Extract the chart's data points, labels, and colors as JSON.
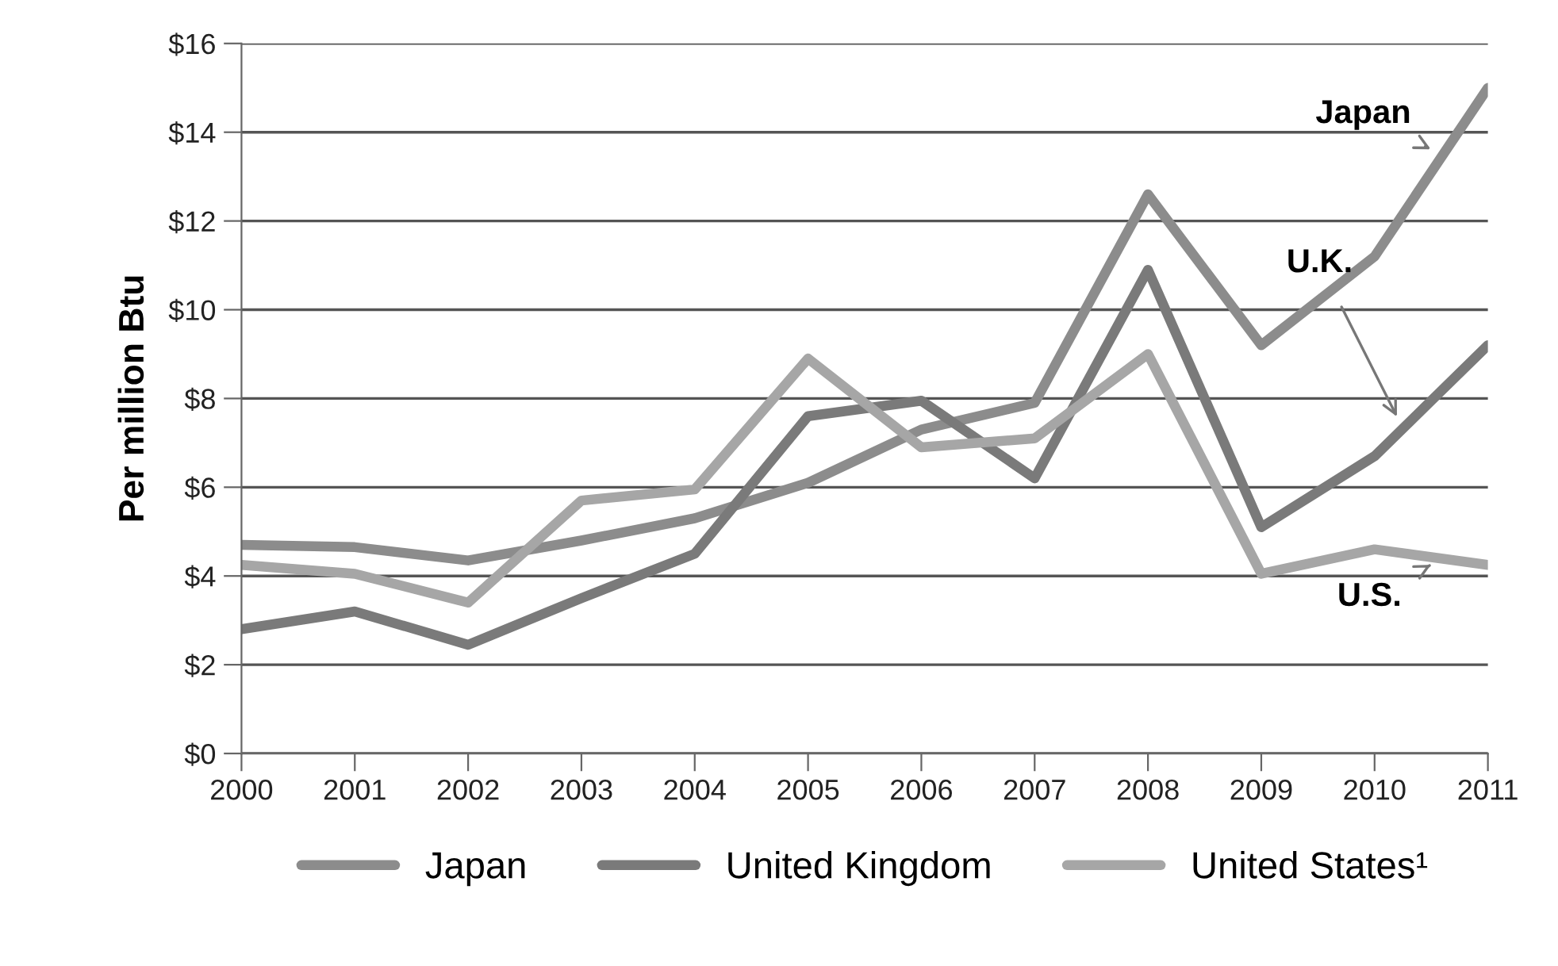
{
  "chart_data": {
    "type": "line",
    "ylabel": "Per million Btu",
    "x": [
      2000,
      2001,
      2002,
      2003,
      2004,
      2005,
      2006,
      2007,
      2008,
      2009,
      2010,
      2011
    ],
    "series": [
      {
        "name": "Japan",
        "color": "#8c8c8c",
        "values": [
          4.7,
          4.65,
          4.35,
          4.8,
          5.3,
          6.1,
          7.3,
          7.9,
          12.6,
          9.2,
          11.2,
          15.0
        ]
      },
      {
        "name": "United Kingdom",
        "color": "#7a7a7a",
        "values": [
          2.8,
          3.2,
          2.45,
          3.5,
          4.5,
          7.6,
          7.95,
          6.2,
          10.9,
          5.1,
          6.7,
          9.2
        ]
      },
      {
        "name": "United States¹",
        "color": "#a6a6a6",
        "values": [
          4.25,
          4.05,
          3.4,
          5.7,
          5.95,
          8.9,
          6.9,
          7.1,
          9.0,
          4.05,
          4.6,
          4.25
        ]
      }
    ],
    "xlim": [
      2000,
      2011
    ],
    "xticks": [
      2000,
      2001,
      2002,
      2003,
      2004,
      2005,
      2006,
      2007,
      2008,
      2009,
      2010,
      2011
    ],
    "ylim": [
      0,
      16
    ],
    "yticks": [
      {
        "value": 0,
        "label": "$0"
      },
      {
        "value": 2,
        "label": "$2"
      },
      {
        "value": 4,
        "label": "$4"
      },
      {
        "value": 6,
        "label": "$6"
      },
      {
        "value": 8,
        "label": "$8"
      },
      {
        "value": 10,
        "label": "$10"
      },
      {
        "value": 12,
        "label": "$12"
      },
      {
        "value": 14,
        "label": "$14"
      },
      {
        "value": 16,
        "label": "$16"
      }
    ],
    "annotations": [
      "Japan",
      "U.K.",
      "U.S."
    ],
    "grid": "y",
    "legend": "bottom",
    "marker": "none",
    "line_style": "solid"
  }
}
